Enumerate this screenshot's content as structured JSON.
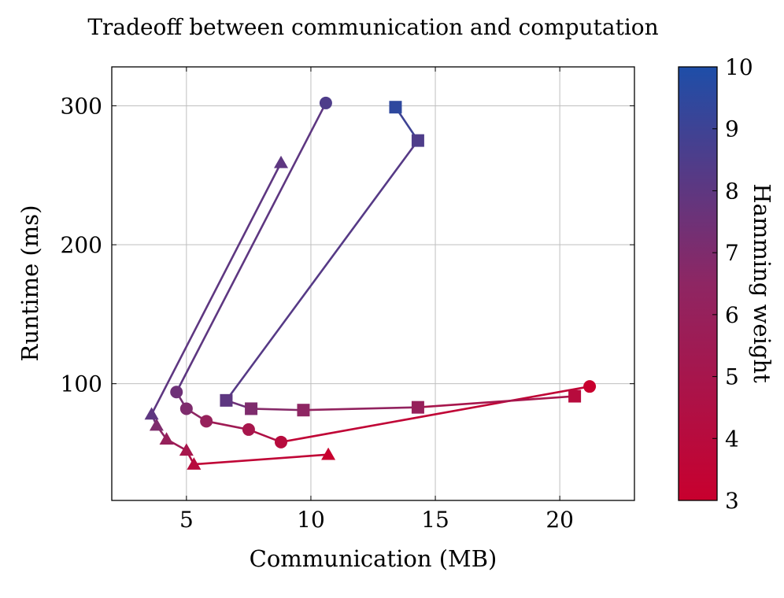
{
  "chart_data": {
    "type": "line",
    "title": "Tradeoff between communication and computation",
    "xlabel": "Communication (MB)",
    "ylabel": "Runtime (ms)",
    "xlim": [
      2,
      23
    ],
    "ylim": [
      16,
      328
    ],
    "xticks": [
      5,
      10,
      15,
      20
    ],
    "yticks": [
      100,
      200,
      300
    ],
    "grid": true,
    "colorbar": {
      "label": "Hamming weight",
      "range": [
        3,
        10
      ],
      "ticks": [
        3,
        4,
        5,
        6,
        7,
        8,
        9,
        10
      ],
      "colors": [
        "#c8002e",
        "#8e2663",
        "#1e4ea8"
      ]
    },
    "series": [
      {
        "marker": "triangle",
        "points": [
          {
            "x": 10.7,
            "y": 49,
            "hw": 3
          },
          {
            "x": 5.3,
            "y": 42,
            "hw": 4
          },
          {
            "x": 5.0,
            "y": 52,
            "hw": 5
          },
          {
            "x": 4.2,
            "y": 60,
            "hw": 6
          },
          {
            "x": 3.8,
            "y": 70,
            "hw": 7
          },
          {
            "x": 3.6,
            "y": 78,
            "hw": 8
          },
          {
            "x": 8.8,
            "y": 259,
            "hw": 8
          }
        ]
      },
      {
        "marker": "circle",
        "points": [
          {
            "x": 21.2,
            "y": 98,
            "hw": 3
          },
          {
            "x": 8.8,
            "y": 58,
            "hw": 4
          },
          {
            "x": 7.5,
            "y": 67,
            "hw": 5
          },
          {
            "x": 5.8,
            "y": 73,
            "hw": 6
          },
          {
            "x": 5.0,
            "y": 82,
            "hw": 7
          },
          {
            "x": 4.6,
            "y": 94,
            "hw": 7.5
          },
          {
            "x": 10.6,
            "y": 302,
            "hw": 8.5
          }
        ]
      },
      {
        "marker": "square",
        "points": [
          {
            "x": 20.6,
            "y": 91,
            "hw": 4
          },
          {
            "x": 14.3,
            "y": 83,
            "hw": 6
          },
          {
            "x": 9.7,
            "y": 81,
            "hw": 6.5
          },
          {
            "x": 7.6,
            "y": 82,
            "hw": 7
          },
          {
            "x": 6.6,
            "y": 88,
            "hw": 8
          },
          {
            "x": 14.3,
            "y": 275,
            "hw": 8.5
          },
          {
            "x": 13.4,
            "y": 299,
            "hw": 9.5
          }
        ]
      }
    ]
  }
}
